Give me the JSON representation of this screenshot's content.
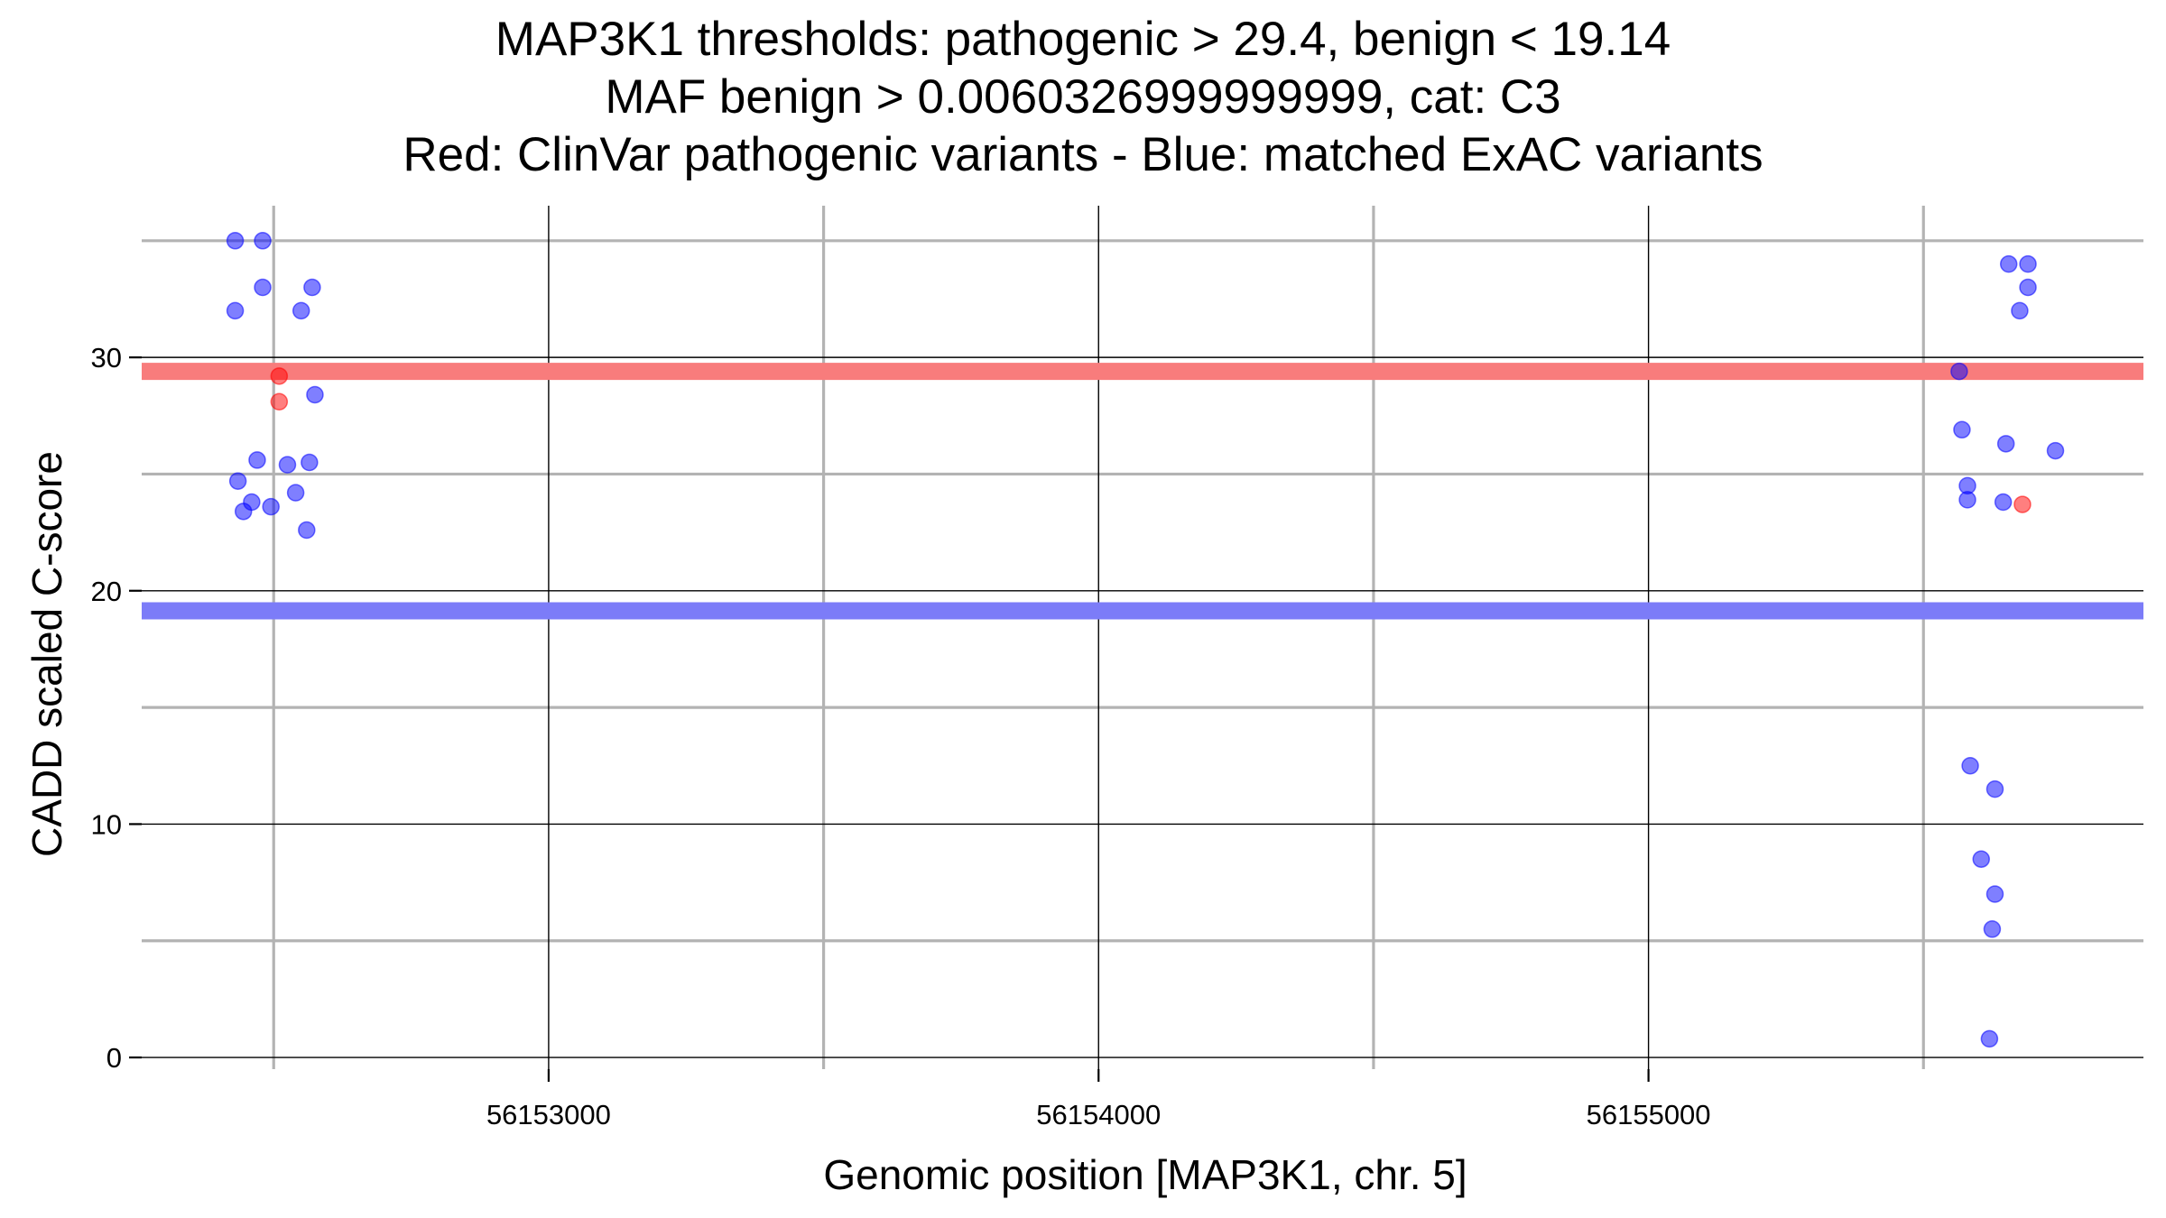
{
  "chart_data": {
    "type": "scatter",
    "title_lines": [
      "MAP3K1 thresholds: pathogenic > 29.4, benign < 19.14",
      "MAF benign > 0.0060326999999999, cat: C3",
      "Red: ClinVar pathogenic variants - Blue: matched ExAC variants"
    ],
    "xlabel": "Genomic position [MAP3K1, chr. 5]",
    "ylabel": "CADD scaled C-score",
    "xlim": [
      56152260,
      56155900
    ],
    "ylim": [
      -0.5,
      36.5
    ],
    "x_ticks": [
      56153000,
      56154000,
      56155000
    ],
    "x_tick_labels": [
      "56153000",
      "56154000",
      "56155000"
    ],
    "x_minor_gridlines": [
      56152500,
      56153500,
      56154500,
      56155500
    ],
    "y_ticks": [
      0,
      10,
      20,
      30
    ],
    "y_tick_labels": [
      "0",
      "10",
      "20",
      "30"
    ],
    "y_minor_gridlines": [
      5,
      15,
      25,
      35
    ],
    "grid": true,
    "thresholds": [
      {
        "name": "pathogenic",
        "value": 29.4,
        "color": "#f87c7c"
      },
      {
        "name": "benign",
        "value": 19.14,
        "color": "#7c7cf8"
      }
    ],
    "series": [
      {
        "color": "#0000ff",
        "points": [
          {
            "x": 56152430,
            "y": 35
          },
          {
            "x": 56152480,
            "y": 35
          },
          {
            "x": 56152480,
            "y": 33
          },
          {
            "x": 56152430,
            "y": 32
          },
          {
            "x": 56152570,
            "y": 33
          },
          {
            "x": 56152550,
            "y": 32
          },
          {
            "x": 56152575,
            "y": 28.4
          },
          {
            "x": 56152470,
            "y": 25.6
          },
          {
            "x": 56152525,
            "y": 25.4
          },
          {
            "x": 56152565,
            "y": 25.5
          },
          {
            "x": 56152435,
            "y": 24.7
          },
          {
            "x": 56152540,
            "y": 24.2
          },
          {
            "x": 56152460,
            "y": 23.8
          },
          {
            "x": 56152445,
            "y": 23.4
          },
          {
            "x": 56152495,
            "y": 23.6
          },
          {
            "x": 56152560,
            "y": 22.6
          },
          {
            "x": 56155565,
            "y": 29.4
          },
          {
            "x": 56155570,
            "y": 26.9
          },
          {
            "x": 56155580,
            "y": 24.5
          },
          {
            "x": 56155580,
            "y": 23.9
          },
          {
            "x": 56155650,
            "y": 26.3
          },
          {
            "x": 56155645,
            "y": 23.8
          },
          {
            "x": 56155740,
            "y": 26
          },
          {
            "x": 56155655,
            "y": 34
          },
          {
            "x": 56155690,
            "y": 34
          },
          {
            "x": 56155690,
            "y": 33
          },
          {
            "x": 56155675,
            "y": 32
          },
          {
            "x": 56155585,
            "y": 12.5
          },
          {
            "x": 56155630,
            "y": 11.5
          },
          {
            "x": 56155605,
            "y": 8.5
          },
          {
            "x": 56155630,
            "y": 7
          },
          {
            "x": 56155625,
            "y": 5.5
          },
          {
            "x": 56155620,
            "y": 0.8
          }
        ]
      },
      {
        "color": "#ff0000",
        "points": [
          {
            "x": 56152510,
            "y": 29.2
          },
          {
            "x": 56152510,
            "y": 28.1
          },
          {
            "x": 56155680,
            "y": 23.7
          }
        ]
      }
    ]
  }
}
